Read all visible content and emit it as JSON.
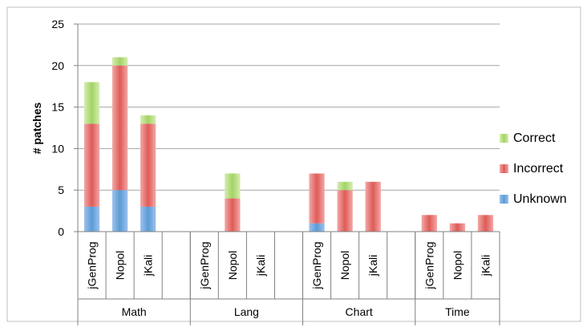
{
  "chart_data": {
    "type": "bar",
    "stacked": true,
    "ylabel": "# patches",
    "ylim": [
      0,
      25
    ],
    "yticks": [
      0,
      5,
      10,
      15,
      20,
      25
    ],
    "grid": true,
    "legend_position": "right",
    "groups": [
      {
        "label": "Math",
        "categories": [
          "jGenProg",
          "Nopol",
          "jKali"
        ]
      },
      {
        "label": "Lang",
        "categories": [
          "jGenProg",
          "Nopol",
          "jKali"
        ]
      },
      {
        "label": "Chart",
        "categories": [
          "jGenProg",
          "Nopol",
          "jKali"
        ]
      },
      {
        "label": "Time",
        "categories": [
          "jGenProg",
          "Nopol",
          "jKali"
        ]
      }
    ],
    "series": [
      {
        "name": "Unknown",
        "color": "#5b9bd5",
        "values": [
          3,
          5,
          3,
          0,
          0,
          0,
          1,
          0,
          0,
          0,
          0,
          0
        ]
      },
      {
        "name": "Incorrect",
        "color": "#e06666",
        "values": [
          10,
          15,
          10,
          0,
          4,
          0,
          6,
          5,
          6,
          2,
          1,
          2
        ]
      },
      {
        "name": "Correct",
        "color": "#a9d46f",
        "values": [
          5,
          1,
          1,
          0,
          3,
          0,
          0,
          1,
          0,
          0,
          0,
          0
        ]
      }
    ],
    "legend_order": [
      "Correct",
      "Incorrect",
      "Unknown"
    ]
  }
}
